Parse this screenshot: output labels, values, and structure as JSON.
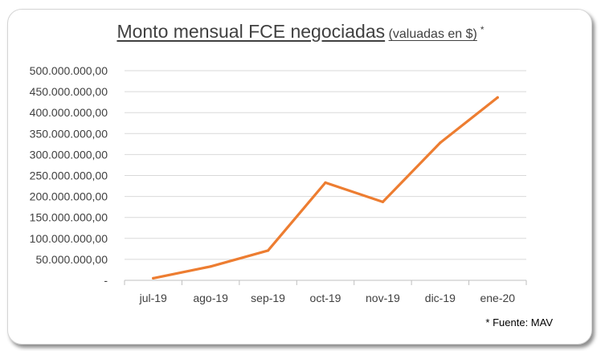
{
  "chart_data": {
    "type": "line",
    "title": "Monto mensual FCE negociadas",
    "subtitle": "valuadas en $",
    "title_marker": "*",
    "categories": [
      "jul-19",
      "ago-19",
      "sep-19",
      "oct-19",
      "nov-19",
      "dic-19",
      "ene-20"
    ],
    "series": [
      {
        "values": [
          5000000,
          33000000,
          71000000,
          233000000,
          187000000,
          328000000,
          436000000
        ]
      }
    ],
    "ylim": [
      0,
      500000000
    ],
    "y_tick_labels": [
      "-",
      "50.000.000,00",
      "100.000.000,00",
      "150.000.000,00",
      "200.000.000,00",
      "250.000.000,00",
      "300.000.000,00",
      "350.000.000,00",
      "400.000.000,00",
      "450.000.000,00",
      "500.000.000,00"
    ],
    "grid": true,
    "line_color": "#ED7D31",
    "source": "* Fuente: MAV"
  }
}
